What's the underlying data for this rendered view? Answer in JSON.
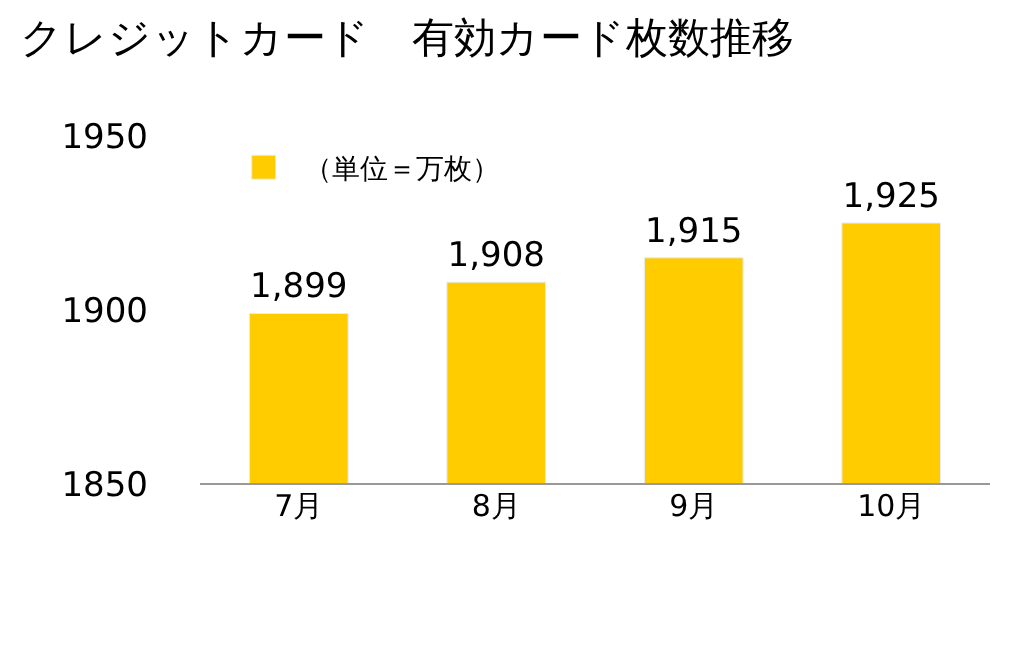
{
  "chart_data": {
    "type": "bar",
    "title": "クレジットカード　有効カード枚数推移",
    "categories": [
      "7月",
      "8月",
      "9月",
      "10月"
    ],
    "series": [
      {
        "name": "（単位＝万枚）",
        "color": "#ffcc00",
        "values": [
          1899,
          1908,
          1915,
          1925
        ],
        "value_labels": [
          "1,899",
          "1,908",
          "1,915",
          "1,925"
        ]
      }
    ],
    "ylim": [
      1850,
      1950
    ],
    "yticks": [
      1850,
      1900,
      1950
    ],
    "grid": false,
    "legend": "top left"
  }
}
